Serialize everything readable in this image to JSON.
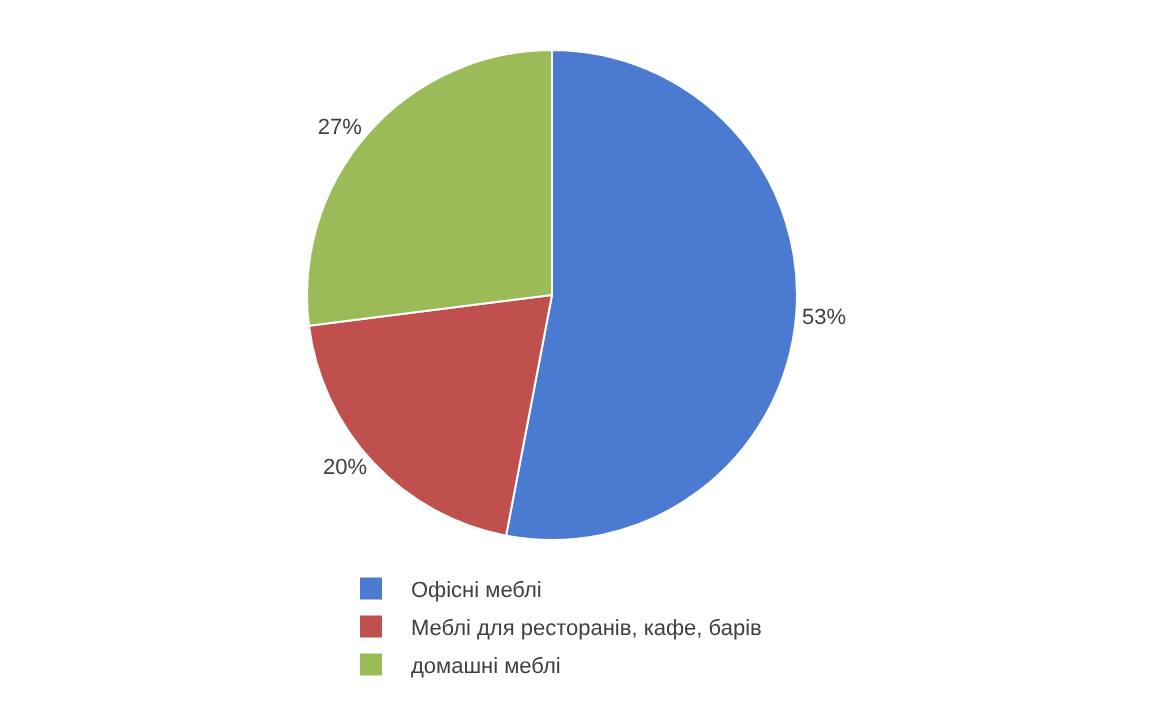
{
  "chart_data": {
    "type": "pie",
    "categories": [
      "Офісні меблі",
      "Меблі для ресторанів, кафе, барів",
      "домашні меблі"
    ],
    "values": [
      53,
      20,
      27
    ],
    "value_labels": [
      "53%",
      "20%",
      "27%"
    ],
    "colors": [
      "#4a7bd0",
      "#c0504d",
      "#9bbb59"
    ],
    "legend": "bottom"
  }
}
